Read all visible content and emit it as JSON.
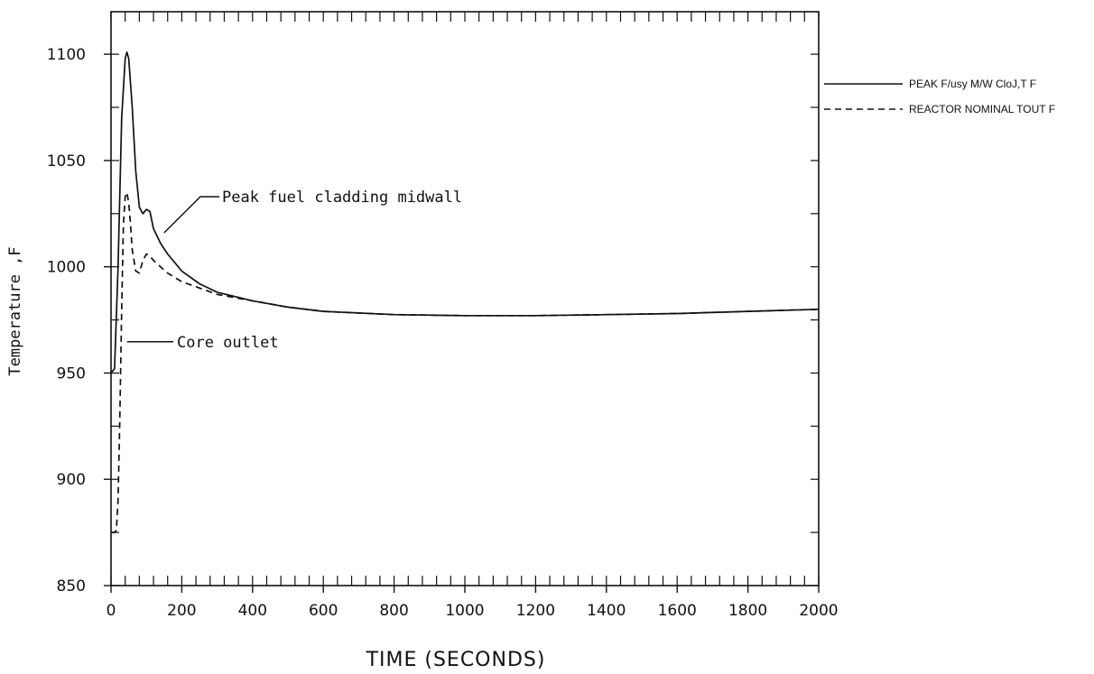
{
  "chart_data": {
    "type": "line",
    "xlabel": "TIME (SECONDS)",
    "ylabel": "Temperature ,F",
    "xlim": [
      0,
      2000
    ],
    "ylim": [
      850,
      1120
    ],
    "xticks": [
      0,
      200,
      400,
      600,
      800,
      1000,
      1200,
      1400,
      1600,
      1800,
      2000
    ],
    "yticks": [
      850,
      900,
      950,
      1000,
      1050,
      1100
    ],
    "xtick_labels": [
      "0",
      "200",
      "400",
      "600",
      "800",
      "1000",
      "1200",
      "1400",
      "1600",
      "1800",
      "2000"
    ],
    "ytick_labels": [
      "850",
      "900",
      "950",
      "1000",
      "1050",
      "1100"
    ],
    "grid": false,
    "legend_position": "right",
    "series": [
      {
        "name": "PEAK F/usy M/W CloJ,T F",
        "style": "solid",
        "x": [
          0,
          10,
          20,
          30,
          40,
          45,
          50,
          60,
          70,
          80,
          90,
          100,
          110,
          120,
          140,
          160,
          200,
          250,
          300,
          400,
          500,
          600,
          800,
          1000,
          1200,
          1400,
          1600,
          1800,
          2000
        ],
        "y": [
          950,
          952,
          1000,
          1070,
          1098,
          1101,
          1098,
          1075,
          1045,
          1028,
          1025,
          1027,
          1026,
          1018,
          1011,
          1006,
          998,
          992,
          988,
          984,
          981,
          979,
          977.5,
          977,
          977,
          977.5,
          978,
          979,
          980
        ]
      },
      {
        "name": "REACTOR NOMINAL TOUT F",
        "style": "dashed",
        "x": [
          0,
          10,
          15,
          20,
          25,
          30,
          35,
          40,
          45,
          50,
          55,
          60,
          70,
          80,
          90,
          100,
          110,
          120,
          140,
          160,
          200,
          250,
          300,
          400,
          500,
          600,
          800,
          1000,
          1200,
          1400,
          1600,
          1800,
          2000
        ],
        "y": [
          875,
          875,
          876,
          890,
          930,
          980,
          1020,
          1033,
          1035,
          1030,
          1020,
          1008,
          998,
          997,
          1003,
          1006,
          1005,
          1003,
          1000,
          997,
          993,
          990,
          987,
          984,
          981,
          979,
          977.5,
          977,
          977,
          977.5,
          978,
          979,
          980
        ]
      }
    ],
    "annotations": [
      {
        "text": "Peak fuel cladding midwall",
        "x": 150,
        "y": 1016
      },
      {
        "text": "Core outlet",
        "x": 30,
        "y": 966
      }
    ]
  }
}
